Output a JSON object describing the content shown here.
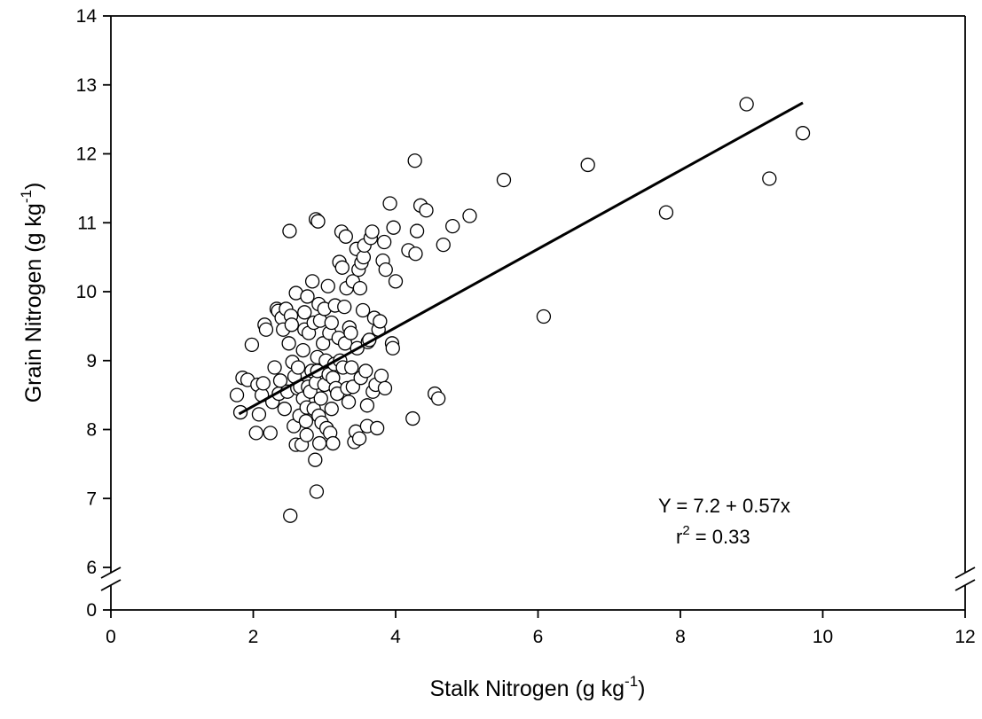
{
  "chart_data": {
    "type": "scatter",
    "xlabel": "Stalk Nitrogen (g kg",
    "xlabel_superscript": "-1",
    "xlabel_suffix": ")",
    "ylabel": "Grain Nitrogen (g kg",
    "ylabel_superscript": "-1",
    "ylabel_suffix": ")",
    "xlim": [
      0,
      12
    ],
    "ylim": [
      6,
      14
    ],
    "y_axis_break": true,
    "y_break_below_value": 0,
    "grid": false,
    "legend": "none",
    "xticks": [
      0,
      2,
      4,
      6,
      8,
      10,
      12
    ],
    "xtick_labels": [
      "0",
      "2",
      "4",
      "6",
      "8",
      "10",
      "12"
    ],
    "yticks_upper": [
      6,
      7,
      8,
      9,
      10,
      11,
      12,
      13,
      14
    ],
    "ytick_labels_upper": [
      "6",
      "7",
      "8",
      "9",
      "10",
      "11",
      "12",
      "13",
      "14"
    ],
    "ytick_lower_label": "0",
    "marker": {
      "shape": "circle",
      "fill": "#ffffff",
      "edge": "#000000"
    },
    "regression": {
      "intercept": 7.2,
      "slope": 0.57,
      "x_range": [
        1.8,
        9.72
      ],
      "color": "#000000"
    },
    "annotation": {
      "equation": "Y = 7.2 + 0.57x",
      "r2_prefix": "r",
      "r2_superscript": "2",
      "r2_value": " = 0.33"
    },
    "points": [
      [
        1.77,
        8.5
      ],
      [
        1.82,
        8.25
      ],
      [
        1.85,
        8.75
      ],
      [
        1.92,
        8.72
      ],
      [
        1.98,
        9.23
      ],
      [
        2.04,
        7.95
      ],
      [
        2.06,
        8.65
      ],
      [
        2.08,
        8.22
      ],
      [
        2.12,
        8.5
      ],
      [
        2.14,
        8.67
      ],
      [
        2.16,
        9.52
      ],
      [
        2.18,
        9.45
      ],
      [
        2.24,
        7.95
      ],
      [
        2.27,
        8.4
      ],
      [
        2.3,
        8.9
      ],
      [
        2.33,
        9.75
      ],
      [
        2.35,
        9.72
      ],
      [
        2.36,
        8.52
      ],
      [
        2.38,
        8.71
      ],
      [
        2.4,
        9.62
      ],
      [
        2.42,
        9.45
      ],
      [
        2.44,
        8.3
      ],
      [
        2.46,
        9.75
      ],
      [
        2.48,
        8.55
      ],
      [
        2.5,
        9.25
      ],
      [
        2.51,
        10.88
      ],
      [
        2.52,
        6.75
      ],
      [
        2.53,
        9.65
      ],
      [
        2.54,
        9.52
      ],
      [
        2.55,
        8.98
      ],
      [
        2.57,
        8.05
      ],
      [
        2.58,
        8.77
      ],
      [
        2.6,
        9.98
      ],
      [
        2.6,
        7.78
      ],
      [
        2.62,
        8.6
      ],
      [
        2.63,
        8.9
      ],
      [
        2.65,
        8.2
      ],
      [
        2.66,
        8.62
      ],
      [
        2.68,
        7.78
      ],
      [
        2.7,
        8.45
      ],
      [
        2.7,
        9.15
      ],
      [
        2.72,
        9.45
      ],
      [
        2.72,
        9.7
      ],
      [
        2.74,
        8.12
      ],
      [
        2.75,
        8.32
      ],
      [
        2.75,
        7.92
      ],
      [
        2.76,
        9.93
      ],
      [
        2.77,
        8.62
      ],
      [
        2.78,
        9.4
      ],
      [
        2.8,
        8.55
      ],
      [
        2.82,
        8.85
      ],
      [
        2.83,
        10.15
      ],
      [
        2.85,
        8.3
      ],
      [
        2.85,
        9.55
      ],
      [
        2.87,
        7.56
      ],
      [
        2.88,
        11.05
      ],
      [
        2.88,
        8.68
      ],
      [
        2.89,
        7.1
      ],
      [
        2.9,
        9.05
      ],
      [
        2.9,
        8.85
      ],
      [
        2.91,
        11.02
      ],
      [
        2.92,
        8.2
      ],
      [
        2.92,
        9.82
      ],
      [
        2.93,
        7.8
      ],
      [
        2.94,
        9.58
      ],
      [
        2.95,
        8.45
      ],
      [
        2.96,
        8.1
      ],
      [
        2.98,
        9.25
      ],
      [
        3.0,
        9.75
      ],
      [
        3.0,
        8.65
      ],
      [
        3.02,
        9.0
      ],
      [
        3.03,
        8.02
      ],
      [
        3.05,
        10.08
      ],
      [
        3.06,
        8.8
      ],
      [
        3.07,
        9.4
      ],
      [
        3.08,
        7.95
      ],
      [
        3.1,
        9.55
      ],
      [
        3.1,
        8.3
      ],
      [
        3.12,
        8.75
      ],
      [
        3.12,
        7.8
      ],
      [
        3.14,
        8.95
      ],
      [
        3.15,
        9.8
      ],
      [
        3.16,
        8.6
      ],
      [
        3.18,
        8.52
      ],
      [
        3.2,
        9.33
      ],
      [
        3.21,
        10.43
      ],
      [
        3.22,
        9.0
      ],
      [
        3.24,
        10.87
      ],
      [
        3.25,
        10.35
      ],
      [
        3.26,
        8.9
      ],
      [
        3.28,
        9.78
      ],
      [
        3.29,
        9.25
      ],
      [
        3.3,
        10.8
      ],
      [
        3.31,
        10.05
      ],
      [
        3.32,
        8.6
      ],
      [
        3.34,
        8.4
      ],
      [
        3.35,
        9.48
      ],
      [
        3.37,
        9.4
      ],
      [
        3.38,
        8.9
      ],
      [
        3.4,
        10.15
      ],
      [
        3.4,
        8.62
      ],
      [
        3.42,
        7.82
      ],
      [
        3.44,
        7.97
      ],
      [
        3.45,
        10.62
      ],
      [
        3.46,
        9.18
      ],
      [
        3.48,
        10.32
      ],
      [
        3.49,
        7.87
      ],
      [
        3.5,
        10.05
      ],
      [
        3.51,
        8.75
      ],
      [
        3.52,
        10.42
      ],
      [
        3.54,
        9.73
      ],
      [
        3.55,
        10.5
      ],
      [
        3.56,
        10.67
      ],
      [
        3.58,
        8.85
      ],
      [
        3.6,
        8.35
      ],
      [
        3.6,
        8.05
      ],
      [
        3.61,
        9.27
      ],
      [
        3.63,
        9.3
      ],
      [
        3.65,
        10.78
      ],
      [
        3.67,
        10.87
      ],
      [
        3.68,
        8.55
      ],
      [
        3.7,
        9.62
      ],
      [
        3.72,
        8.65
      ],
      [
        3.74,
        8.02
      ],
      [
        3.76,
        9.45
      ],
      [
        3.78,
        9.57
      ],
      [
        3.8,
        8.78
      ],
      [
        3.82,
        10.45
      ],
      [
        3.84,
        10.72
      ],
      [
        3.85,
        8.6
      ],
      [
        3.86,
        10.32
      ],
      [
        3.92,
        11.28
      ],
      [
        3.95,
        9.25
      ],
      [
        3.96,
        9.18
      ],
      [
        3.97,
        10.93
      ],
      [
        4.0,
        10.15
      ],
      [
        4.18,
        10.6
      ],
      [
        4.24,
        8.16
      ],
      [
        4.27,
        11.9
      ],
      [
        4.28,
        10.55
      ],
      [
        4.3,
        10.88
      ],
      [
        4.35,
        11.25
      ],
      [
        4.43,
        11.18
      ],
      [
        4.55,
        8.52
      ],
      [
        4.6,
        8.45
      ],
      [
        4.67,
        10.68
      ],
      [
        4.8,
        10.95
      ],
      [
        5.04,
        11.1
      ],
      [
        5.52,
        11.62
      ],
      [
        6.08,
        9.64
      ],
      [
        6.7,
        11.84
      ],
      [
        7.8,
        11.15
      ],
      [
        8.93,
        12.72
      ],
      [
        9.25,
        11.64
      ],
      [
        9.72,
        12.3
      ]
    ]
  }
}
